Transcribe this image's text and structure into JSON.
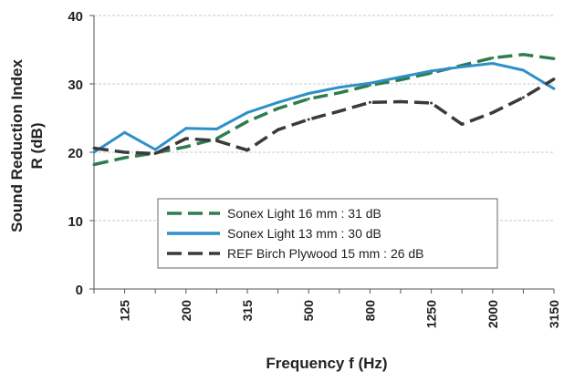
{
  "chart_data": {
    "type": "line",
    "xlabel": "Frequency f (Hz)",
    "ylabel_lines": [
      "Sound Reduction Index",
      "R (dB)"
    ],
    "ylim": [
      0,
      40
    ],
    "yticks": [
      0,
      10,
      20,
      30,
      40
    ],
    "grid": true,
    "legend_position": "bottom-center",
    "x": [
      "100",
      "125",
      "160",
      "200",
      "250",
      "315",
      "400",
      "500",
      "630",
      "800",
      "1000",
      "1250",
      "1600",
      "2000",
      "2500",
      "3150"
    ],
    "x_tick_labels": [
      "125",
      "200",
      "315",
      "500",
      "800",
      "1250",
      "2000",
      "3150"
    ],
    "series": [
      {
        "name": "Sonex Light 16 mm : 31 dB",
        "color": "#2e7d4f",
        "dash": "dashed",
        "values": [
          18.2,
          19.2,
          19.9,
          20.8,
          22.0,
          24.5,
          26.4,
          27.8,
          28.7,
          29.8,
          30.6,
          31.6,
          32.7,
          33.8,
          34.3,
          33.7
        ]
      },
      {
        "name": "Sonex Light 13 mm : 30 dB",
        "color": "#2e8fc9",
        "dash": "solid",
        "values": [
          20.0,
          22.9,
          20.4,
          23.5,
          23.4,
          25.8,
          27.3,
          28.6,
          29.5,
          30.1,
          31.0,
          31.9,
          32.5,
          33.0,
          32.0,
          29.3
        ]
      },
      {
        "name": "REF Birch Plywood 15 mm : 26 dB",
        "color": "#3a3a3a",
        "dash": "dashed",
        "values": [
          20.6,
          20.0,
          19.8,
          22.0,
          21.7,
          20.3,
          23.3,
          24.8,
          26.0,
          27.3,
          27.4,
          27.2,
          24.1,
          25.8,
          28.0,
          30.7
        ]
      }
    ]
  }
}
